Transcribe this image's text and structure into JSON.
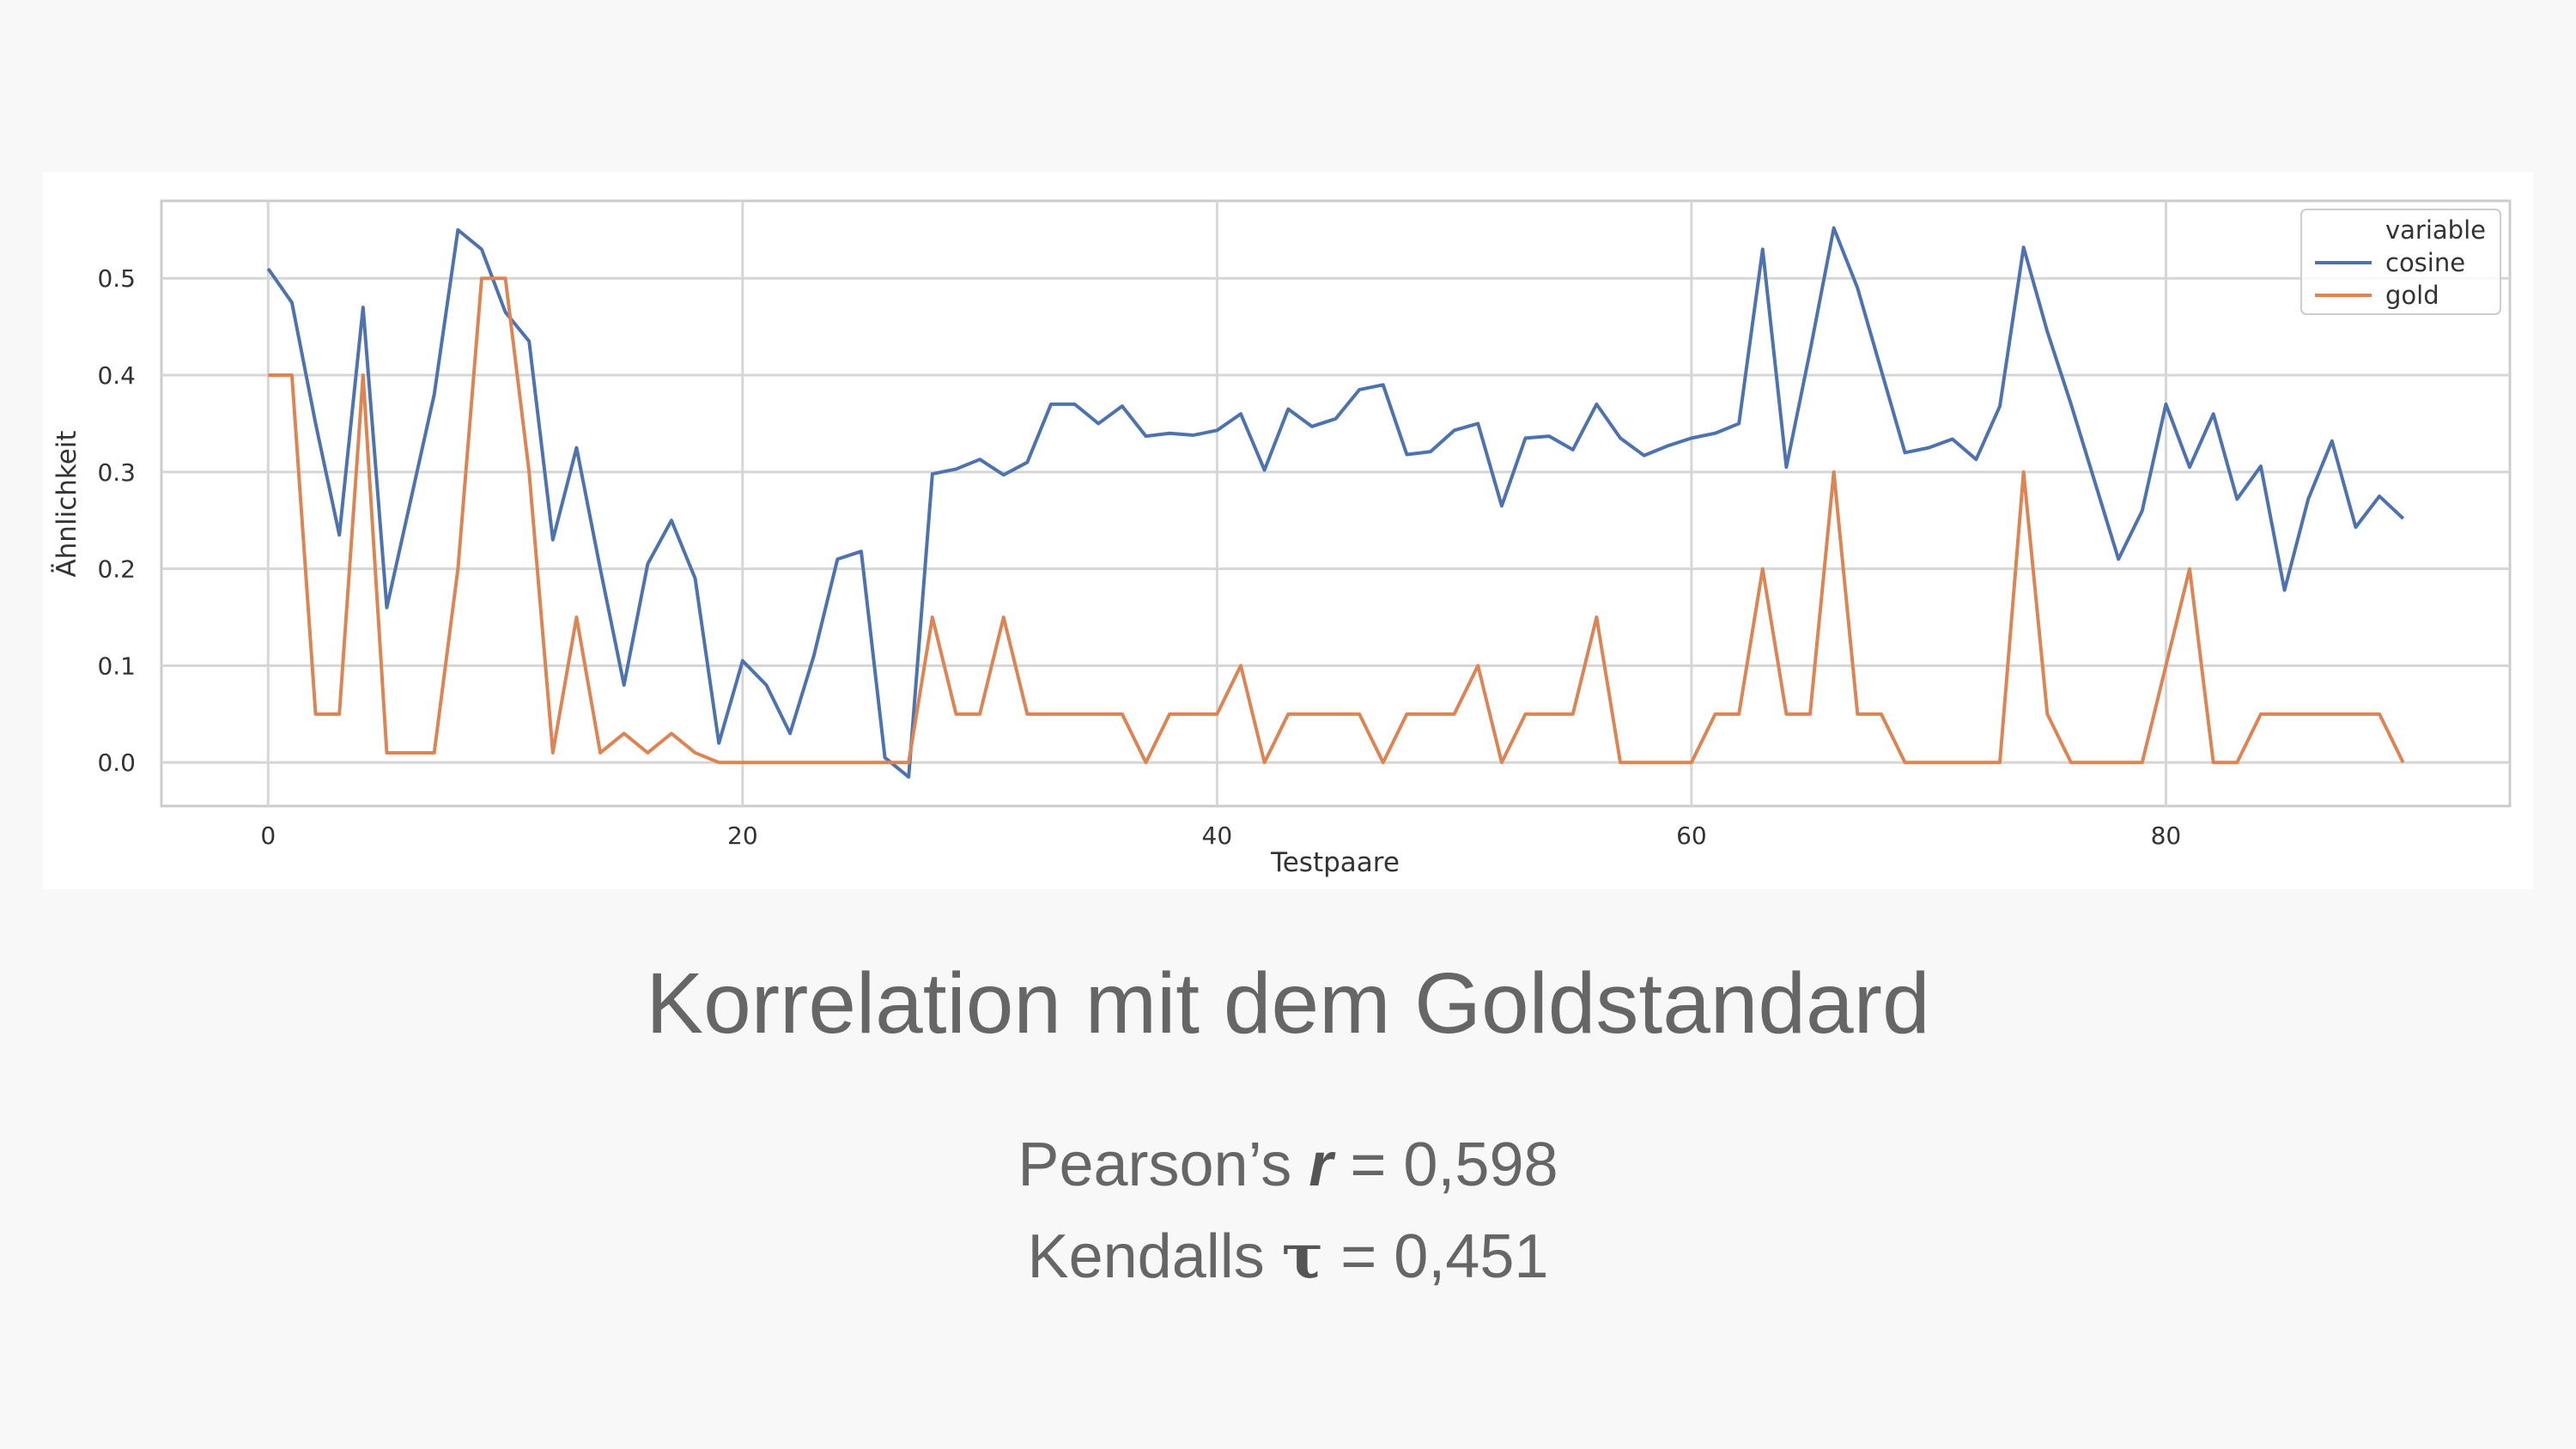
{
  "chart_data": {
    "type": "line",
    "xlabel": "Testpaare",
    "ylabel": "Ähnlichkeit",
    "xlim": [
      -4.5,
      94.5
    ],
    "ylim": [
      -0.045,
      0.58
    ],
    "xticks": [
      0,
      20,
      40,
      60,
      80
    ],
    "yticks": [
      0.0,
      0.1,
      0.2,
      0.3,
      0.4,
      0.5
    ],
    "ytick_labels": [
      "0.0",
      "0.1",
      "0.2",
      "0.3",
      "0.4",
      "0.5"
    ],
    "grid": true,
    "legend": {
      "title": "variable",
      "position": "top-right"
    },
    "x": [
      0,
      1,
      2,
      3,
      4,
      5,
      6,
      7,
      8,
      9,
      10,
      11,
      12,
      13,
      14,
      15,
      16,
      17,
      18,
      19,
      20,
      21,
      22,
      23,
      24,
      25,
      26,
      27,
      28,
      29,
      30,
      31,
      32,
      33,
      34,
      35,
      36,
      37,
      38,
      39,
      40,
      41,
      42,
      43,
      44,
      45,
      46,
      47,
      48,
      49,
      50,
      51,
      52,
      53,
      54,
      55,
      56,
      57,
      58,
      59,
      60,
      61,
      62,
      63,
      64,
      65,
      66,
      67,
      68,
      69,
      70,
      71,
      72,
      73,
      74,
      75,
      76,
      77,
      78,
      79,
      80,
      81,
      82,
      83,
      84,
      85,
      86,
      87,
      88,
      89,
      90
    ],
    "series": [
      {
        "name": "cosine",
        "color": "#4c72b0",
        "values": [
          0.51,
          0.475,
          0.35,
          0.235,
          0.47,
          0.16,
          0.27,
          0.38,
          0.55,
          0.53,
          0.465,
          0.435,
          0.23,
          0.325,
          0.2,
          0.08,
          0.205,
          0.25,
          0.19,
          0.02,
          0.105,
          0.08,
          0.03,
          0.11,
          0.21,
          0.218,
          0.005,
          -0.015,
          0.298,
          0.303,
          0.313,
          0.297,
          0.31,
          0.37,
          0.37,
          0.35,
          0.368,
          0.337,
          0.34,
          0.338,
          0.343,
          0.36,
          0.302,
          0.365,
          0.347,
          0.355,
          0.385,
          0.39,
          0.318,
          0.321,
          0.343,
          0.35,
          0.265,
          0.335,
          0.337,
          0.323,
          0.37,
          0.335,
          0.317,
          0.327,
          0.335,
          0.34,
          0.35,
          0.53,
          0.305,
          0.425,
          0.552,
          0.49,
          0.405,
          0.32,
          0.325,
          0.334,
          0.313,
          0.368,
          0.532,
          0.445,
          0.37,
          0.29,
          0.21,
          0.26,
          0.37,
          0.305,
          0.36,
          0.272,
          0.306,
          0.178,
          0.272,
          0.332,
          0.243,
          0.275,
          0.252
        ]
      },
      {
        "name": "gold",
        "color": "#dd8452",
        "values": [
          0.4,
          0.4,
          0.05,
          0.05,
          0.4,
          0.01,
          0.01,
          0.01,
          0.2,
          0.5,
          0.5,
          0.3,
          0.01,
          0.15,
          0.01,
          0.03,
          0.01,
          0.03,
          0.01,
          0,
          0,
          0,
          0,
          0,
          0,
          0,
          0,
          0,
          0.15,
          0.05,
          0.05,
          0.15,
          0.05,
          0.05,
          0.05,
          0.05,
          0.05,
          0,
          0.05,
          0.05,
          0.05,
          0.1,
          0,
          0.05,
          0.05,
          0.05,
          0.05,
          0,
          0.05,
          0.05,
          0.05,
          0.1,
          0,
          0.05,
          0.05,
          0.05,
          0.15,
          0,
          0,
          0,
          0,
          0.05,
          0.05,
          0.2,
          0.05,
          0.05,
          0.3,
          0.05,
          0.05,
          0,
          0,
          0,
          0,
          0,
          0.3,
          0.05,
          0,
          0,
          0,
          0,
          0.1,
          0.2,
          0,
          0,
          0.05,
          0.05,
          0.05,
          0.05,
          0.05,
          0.05,
          0
        ]
      }
    ]
  },
  "title": "Korrelation mit dem Goldstandard",
  "stats": {
    "pearson_prefix": "Pearson’s ",
    "pearson_symbol": "r",
    "pearson_value": " = 0,598",
    "kendall_prefix": "Kendalls ",
    "kendall_symbol": "τ",
    "kendall_value": " = 0,451"
  }
}
